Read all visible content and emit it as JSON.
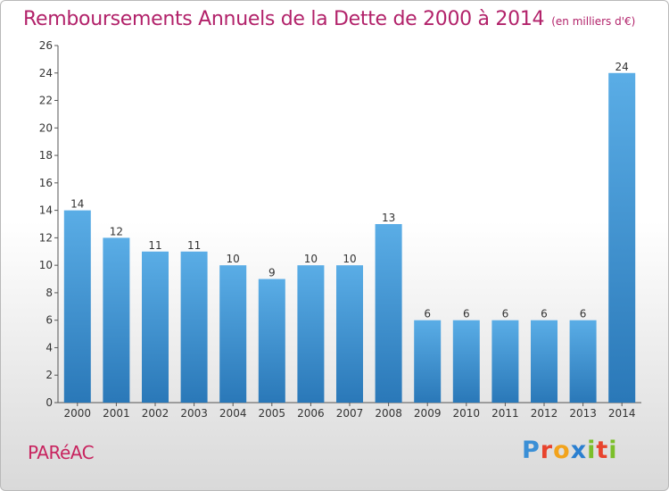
{
  "header": {
    "title": "Remboursements Annuels de la Dette de 2000 à 2014",
    "subtitle": "(en milliers d'€)"
  },
  "footer": {
    "commune": "PARéAC",
    "logo_letters": [
      "P",
      "r",
      "o",
      "x",
      "i",
      "t",
      "i"
    ],
    "logo_colors": [
      "#3a8fd6",
      "#e8432d",
      "#f2a31c",
      "#2a7fd0",
      "#7bbf2a",
      "#e8432d",
      "#7bbf2a"
    ]
  },
  "chart_data": {
    "type": "bar",
    "title": "Remboursements Annuels de la Dette de 2000 à 2014",
    "subtitle": "(en milliers d'€)",
    "categories": [
      "2000",
      "2001",
      "2002",
      "2003",
      "2004",
      "2005",
      "2006",
      "2007",
      "2008",
      "2009",
      "2010",
      "2011",
      "2012",
      "2013",
      "2014"
    ],
    "values": [
      14,
      12,
      11,
      11,
      10,
      9,
      10,
      10,
      13,
      6,
      6,
      6,
      6,
      6,
      24
    ],
    "value_labels": [
      "14",
      "12",
      "11",
      "11",
      "10",
      "9",
      "10",
      "10",
      "13",
      "6",
      "6",
      "6",
      "6",
      "6",
      "24"
    ],
    "yticks": [
      "0",
      "2",
      "4",
      "6",
      "8",
      "10",
      "12",
      "14",
      "16",
      "18",
      "20",
      "22",
      "24",
      "26"
    ],
    "ylim": [
      0,
      26
    ],
    "grid": false,
    "legend": "none",
    "bar_color_top": "#5aade6",
    "bar_color_bottom": "#2a78b8"
  }
}
